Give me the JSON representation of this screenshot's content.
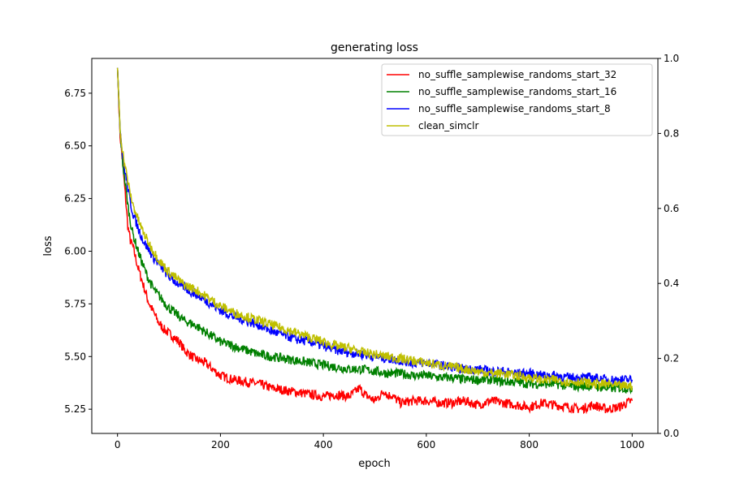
{
  "chart_data": {
    "type": "line",
    "title": "generating loss",
    "xlabel": "epoch",
    "ylabel": "loss",
    "xlim": [
      -50,
      1050
    ],
    "ylim": [
      5.135,
      6.915
    ],
    "xticks": [
      "0",
      "200",
      "400",
      "600",
      "800",
      "1000"
    ],
    "yticks": [
      "5.25",
      "5.50",
      "5.75",
      "6.00",
      "6.25",
      "6.50",
      "6.75"
    ],
    "y2lim": [
      0.0,
      1.0
    ],
    "y2ticks": [
      "0.0",
      "0.2",
      "0.4",
      "0.6",
      "0.8",
      "1.0"
    ],
    "grid": false,
    "legend_position": "top-right",
    "series": [
      {
        "name": "no_suffle_samplewise_randoms_start_32",
        "color": "#ff0000",
        "x": [
          0,
          5,
          10,
          15,
          20,
          25,
          30,
          40,
          50,
          60,
          70,
          80,
          90,
          100,
          110,
          120,
          130,
          140,
          150,
          160,
          170,
          180,
          190,
          200,
          225,
          250,
          275,
          300,
          325,
          350,
          375,
          400,
          425,
          450,
          470,
          480,
          500,
          520,
          525,
          530,
          550,
          575,
          600,
          625,
          650,
          675,
          700,
          725,
          750,
          775,
          800,
          825,
          850,
          875,
          900,
          925,
          950,
          975,
          990,
          1000
        ],
        "y": [
          6.87,
          6.55,
          6.42,
          6.27,
          6.12,
          6.05,
          6.02,
          5.92,
          5.84,
          5.76,
          5.71,
          5.66,
          5.63,
          5.61,
          5.59,
          5.57,
          5.53,
          5.51,
          5.49,
          5.48,
          5.47,
          5.45,
          5.43,
          5.41,
          5.39,
          5.38,
          5.37,
          5.35,
          5.34,
          5.33,
          5.32,
          5.31,
          5.32,
          5.31,
          5.35,
          5.32,
          5.29,
          5.34,
          5.31,
          5.32,
          5.28,
          5.29,
          5.29,
          5.28,
          5.28,
          5.29,
          5.27,
          5.29,
          5.28,
          5.27,
          5.26,
          5.28,
          5.27,
          5.26,
          5.25,
          5.27,
          5.25,
          5.26,
          5.28,
          5.29
        ]
      },
      {
        "name": "no_suffle_samplewise_randoms_start_16",
        "color": "#008000",
        "x": [
          0,
          5,
          10,
          15,
          20,
          25,
          30,
          40,
          50,
          60,
          70,
          80,
          90,
          100,
          110,
          120,
          130,
          140,
          150,
          175,
          200,
          225,
          250,
          275,
          300,
          325,
          350,
          375,
          400,
          425,
          450,
          475,
          500,
          525,
          550,
          575,
          600,
          625,
          650,
          675,
          700,
          725,
          750,
          775,
          800,
          825,
          850,
          875,
          900,
          925,
          950,
          975,
          1000
        ],
        "y": [
          6.87,
          6.57,
          6.42,
          6.32,
          6.22,
          6.14,
          6.08,
          6.0,
          5.93,
          5.87,
          5.82,
          5.79,
          5.76,
          5.73,
          5.71,
          5.69,
          5.67,
          5.66,
          5.65,
          5.61,
          5.57,
          5.55,
          5.53,
          5.51,
          5.5,
          5.49,
          5.48,
          5.47,
          5.46,
          5.45,
          5.44,
          5.44,
          5.43,
          5.42,
          5.42,
          5.41,
          5.41,
          5.4,
          5.4,
          5.39,
          5.39,
          5.39,
          5.38,
          5.38,
          5.37,
          5.37,
          5.37,
          5.36,
          5.36,
          5.36,
          5.35,
          5.35,
          5.35
        ]
      },
      {
        "name": "no_suffle_samplewise_randoms_start_8",
        "color": "#0000ff",
        "x": [
          0,
          5,
          10,
          15,
          20,
          25,
          30,
          40,
          50,
          60,
          70,
          80,
          90,
          100,
          110,
          120,
          130,
          140,
          150,
          175,
          200,
          225,
          250,
          275,
          300,
          325,
          350,
          375,
          400,
          425,
          450,
          475,
          500,
          525,
          550,
          575,
          600,
          625,
          650,
          675,
          700,
          725,
          750,
          775,
          800,
          825,
          850,
          875,
          900,
          925,
          950,
          975,
          1000
        ],
        "y": [
          6.87,
          6.58,
          6.45,
          6.37,
          6.3,
          6.23,
          6.18,
          6.11,
          6.05,
          6.01,
          5.97,
          5.94,
          5.91,
          5.88,
          5.86,
          5.84,
          5.83,
          5.81,
          5.8,
          5.76,
          5.72,
          5.69,
          5.67,
          5.65,
          5.62,
          5.6,
          5.58,
          5.57,
          5.55,
          5.53,
          5.52,
          5.51,
          5.5,
          5.49,
          5.48,
          5.47,
          5.47,
          5.46,
          5.45,
          5.44,
          5.44,
          5.43,
          5.43,
          5.42,
          5.42,
          5.41,
          5.41,
          5.4,
          5.4,
          5.4,
          5.39,
          5.39,
          5.39
        ]
      },
      {
        "name": "clean_simclr",
        "color": "#bfbf00",
        "x": [
          0,
          5,
          10,
          15,
          20,
          25,
          30,
          40,
          50,
          60,
          70,
          80,
          90,
          100,
          110,
          120,
          130,
          140,
          150,
          175,
          200,
          225,
          250,
          275,
          300,
          325,
          350,
          375,
          400,
          425,
          450,
          475,
          500,
          525,
          550,
          575,
          600,
          625,
          650,
          675,
          700,
          725,
          750,
          775,
          800,
          825,
          850,
          875,
          900,
          925,
          950,
          975,
          1000
        ],
        "y": [
          6.87,
          6.58,
          6.47,
          6.4,
          6.33,
          6.27,
          6.22,
          6.15,
          6.09,
          6.04,
          6.0,
          5.96,
          5.93,
          5.9,
          5.88,
          5.86,
          5.84,
          5.83,
          5.82,
          5.78,
          5.74,
          5.71,
          5.69,
          5.67,
          5.65,
          5.63,
          5.61,
          5.59,
          5.57,
          5.55,
          5.54,
          5.52,
          5.51,
          5.5,
          5.49,
          5.48,
          5.47,
          5.46,
          5.45,
          5.44,
          5.43,
          5.42,
          5.42,
          5.41,
          5.4,
          5.39,
          5.39,
          5.38,
          5.38,
          5.37,
          5.37,
          5.36,
          5.36
        ]
      }
    ]
  }
}
